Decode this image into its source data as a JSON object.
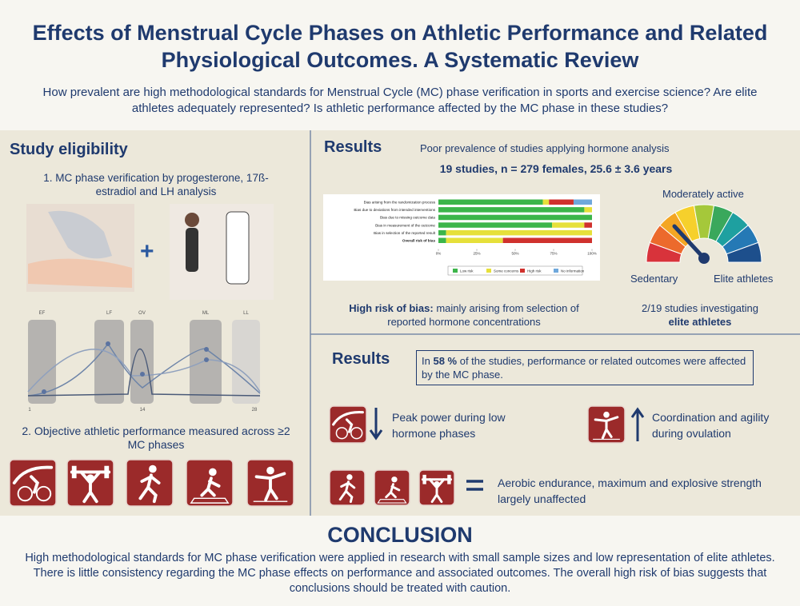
{
  "header": {
    "title": "Effects of Menstrual Cycle Phases on Athletic Performance and Related Physiological Outcomes. A Systematic Review",
    "questions": "How prevalent are high methodological standards for Menstrual Cycle (MC) phase verification in sports and exercise science? Are elite athletes adequately represented? Is athletic performance affected by the MC phase in these studies?"
  },
  "eligibility": {
    "heading": "Study eligibility",
    "step1": "1.  MC phase verification by progesterone, 17ß-estradiol and LH analysis",
    "plus": "+",
    "cycle_chart": {
      "phases": [
        "EF",
        "LF",
        "OV",
        "ML",
        "LL"
      ],
      "x_labels": [
        "1",
        "14",
        "28"
      ]
    },
    "step2": "2. Objective athletic performance measured across ≥2 MC phases"
  },
  "results1": {
    "heading": "Results",
    "subtitle": "Poor prevalence of studies applying hormone analysis",
    "stats": "19 studies, n = 279 females, 25.6 ± 3.6 years",
    "bias_caption": {
      "bold": "High risk of bias:",
      "rest": "mainly arising from selection of reported hormone concentrations"
    },
    "gauge": {
      "top": "Moderately active",
      "left": "Sedentary",
      "right": "Elite athletes"
    },
    "elite_caption": {
      "rest": "2/19 studies investigating",
      "bold": "elite athletes"
    }
  },
  "chart_data": {
    "type": "stacked_barh",
    "categories": [
      "Bias arising from the randomization process",
      "Bias due to deviations from intended interventions",
      "Bias due to missing outcome data",
      "Bias in measurement of the outcome",
      "Bias in selection of the reported result",
      "Overall risk of bias"
    ],
    "series": [
      {
        "name": "Low risk",
        "color": "#3cb54a",
        "values": [
          68,
          95,
          100,
          74,
          5,
          5
        ]
      },
      {
        "name": "Some concerns",
        "color": "#e6e03a",
        "values": [
          4,
          5,
          0,
          21,
          95,
          37
        ]
      },
      {
        "name": "High risk",
        "color": "#d0312d",
        "values": [
          16,
          0,
          0,
          5,
          0,
          58
        ]
      },
      {
        "name": "No information",
        "color": "#6fa8dc",
        "values": [
          12,
          0,
          0,
          0,
          0,
          0
        ]
      }
    ],
    "xlim": [
      0,
      100
    ],
    "xticks": [
      {
        "value": 0,
        "label": "0%"
      },
      {
        "value": 25,
        "label": "25%"
      },
      {
        "value": 50,
        "label": "50%"
      },
      {
        "value": 75,
        "label": "75%"
      },
      {
        "value": 100,
        "label": "100%"
      }
    ]
  },
  "results2": {
    "heading": "Results",
    "box": {
      "pre": "In ",
      "bold": "58 %",
      "post": " of the studies, performance or related outcomes were affected by the MC phase."
    },
    "finding1": "Peak power during low hormone phases",
    "finding2": "Coordination and agility during ovulation",
    "finding3": "Aerobic endurance, maximum and explosive strength largely unaffected"
  },
  "conclusion": {
    "heading": "CONCLUSION",
    "text": "High methodological standards for MC phase verification were applied in research with small sample sizes and low representation of elite athletes. There is little consistency regarding the MC phase effects on performance and associated outcomes. The overall high risk of bias suggests that conclusions should be treated with caution."
  }
}
